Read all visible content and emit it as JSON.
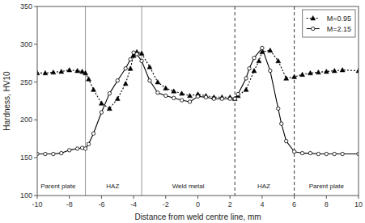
{
  "chart_data": {
    "type": "line",
    "xlabel": "Distance from weld centre line, mm",
    "ylabel": "Hardness, HV10",
    "xlim": [
      -10,
      10
    ],
    "ylim": [
      100,
      350
    ],
    "xticks": [
      -10,
      -8,
      -6,
      -4,
      -2,
      0,
      2,
      4,
      6,
      8,
      10
    ],
    "yticks": [
      100,
      150,
      200,
      250,
      300,
      350
    ],
    "grid": false,
    "legend": "upper right",
    "series": [
      {
        "name": "  M=0.95",
        "color": "black",
        "marker": "triangle",
        "line_style": "dotted",
        "x": [
          -10,
          -9.5,
          -9,
          -8.5,
          -8,
          -7.5,
          -7.2,
          -7.0,
          -6.8,
          -6.5,
          -6.0,
          -5.5,
          -5.0,
          -4.5,
          -4.2,
          -4.0,
          -3.8,
          -3.5,
          -3.0,
          -2.5,
          -2.0,
          -1.5,
          -1.0,
          -0.5,
          0.0,
          0.5,
          1.0,
          1.5,
          2.0,
          2.3,
          2.5,
          3.0,
          3.5,
          3.8,
          4.0,
          4.5,
          5.0,
          5.5,
          6.0,
          6.5,
          7.0,
          7.5,
          8.0,
          8.5,
          9.0,
          10.0
        ],
        "values": [
          262,
          262,
          263,
          264,
          266,
          265,
          264,
          262,
          254,
          240,
          222,
          215,
          228,
          248,
          268,
          285,
          290,
          288,
          270,
          250,
          242,
          238,
          235,
          232,
          234,
          232,
          230,
          230,
          230,
          228,
          232,
          240,
          265,
          278,
          290,
          292,
          278,
          255,
          257,
          260,
          262,
          263,
          264,
          265,
          266,
          265
        ]
      },
      {
        "name": "  M=2.15",
        "color": "black",
        "marker": "open-circle",
        "line_style": "solid",
        "x": [
          -10,
          -9.5,
          -9.0,
          -8.5,
          -8.0,
          -7.5,
          -7.2,
          -7.0,
          -6.8,
          -6.5,
          -6.0,
          -5.5,
          -5.0,
          -4.5,
          -4.2,
          -4.0,
          -3.8,
          -3.5,
          -3.0,
          -2.5,
          -2.0,
          -1.5,
          -1.0,
          -0.5,
          0.0,
          0.5,
          1.0,
          1.5,
          2.0,
          2.3,
          2.5,
          3.0,
          3.2,
          3.5,
          4.0,
          4.5,
          5.0,
          5.2,
          5.5,
          6.0,
          6.5,
          7.0,
          7.5,
          8.0,
          8.5,
          9.0,
          10.0
        ],
        "values": [
          155,
          155,
          155,
          156,
          160,
          162,
          163,
          162,
          168,
          182,
          210,
          235,
          252,
          268,
          280,
          289,
          287,
          278,
          252,
          236,
          232,
          229,
          226,
          224,
          231,
          230,
          228,
          228,
          228,
          228,
          234,
          255,
          268,
          282,
          295,
          265,
          215,
          195,
          172,
          158,
          156,
          156,
          155,
          155,
          155,
          155,
          155
        ]
      }
    ],
    "reference_lines": [
      {
        "x": -7.0,
        "color": "gray",
        "line_style": "solid"
      },
      {
        "x": -3.5,
        "color": "gray",
        "line_style": "solid"
      },
      {
        "x": 2.3,
        "color": "black",
        "line_style": "dashed"
      },
      {
        "x": 6.0,
        "color": "black",
        "line_style": "dashed"
      }
    ],
    "annotations": [
      {
        "text": "Parent plate",
        "x": -8.7,
        "y": 108
      },
      {
        "text": "HAZ",
        "x": -5.3,
        "y": 108
      },
      {
        "text": "Weld metal",
        "x": -0.6,
        "y": 108
      },
      {
        "text": "HAZ",
        "x": 4.1,
        "y": 108
      },
      {
        "text": "Parent plate",
        "x": 8.0,
        "y": 108
      }
    ]
  }
}
